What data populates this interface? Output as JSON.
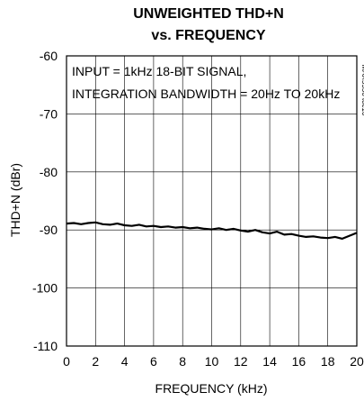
{
  "chart_data": {
    "type": "line",
    "title_lines": [
      "UNWEIGHTED THD+N",
      "vs. FREQUENCY"
    ],
    "xlabel": "FREQUENCY (kHz)",
    "ylabel": "THD+N (dBr)",
    "xlim": [
      0,
      20
    ],
    "ylim": [
      -110,
      -60
    ],
    "xticks": [
      0,
      2,
      4,
      6,
      8,
      10,
      12,
      14,
      16,
      18,
      20
    ],
    "xtick_labels": [
      "0",
      "2",
      "4",
      "6",
      "8",
      "10",
      "12",
      "14",
      "16",
      "18",
      "20"
    ],
    "yticks": [
      -60,
      -70,
      -80,
      -90,
      -100,
      -110
    ],
    "ytick_labels": [
      "-60",
      "-70",
      "-80",
      "-90",
      "-100",
      "-110"
    ],
    "grid": true,
    "annotation_lines": [
      "INPUT = 1kHz 18-BIT SIGNAL,",
      "INTEGRATION BANDWIDTH = 20Hz TO 20kHz"
    ],
    "side_id": "MAX5556 toc10",
    "series": [
      {
        "color": "#000000",
        "x": [
          0.0,
          0.5,
          1.0,
          1.5,
          2.0,
          2.5,
          3.0,
          3.5,
          4.0,
          4.5,
          5.0,
          5.5,
          6.0,
          6.5,
          7.0,
          7.5,
          8.0,
          8.5,
          9.0,
          9.5,
          10.0,
          10.5,
          11.0,
          11.5,
          12.0,
          12.5,
          13.0,
          13.5,
          14.0,
          14.5,
          15.0,
          15.5,
          16.0,
          16.5,
          17.0,
          17.5,
          18.0,
          18.5,
          19.0,
          19.5,
          20.0
        ],
        "y": [
          -88.9,
          -88.8,
          -89.0,
          -88.8,
          -88.7,
          -89.0,
          -89.1,
          -88.9,
          -89.2,
          -89.3,
          -89.1,
          -89.4,
          -89.3,
          -89.5,
          -89.4,
          -89.6,
          -89.5,
          -89.7,
          -89.6,
          -89.8,
          -89.9,
          -89.7,
          -90.0,
          -89.8,
          -90.1,
          -90.3,
          -90.0,
          -90.4,
          -90.6,
          -90.3,
          -90.8,
          -90.7,
          -91.0,
          -91.2,
          -91.1,
          -91.3,
          -91.4,
          -91.2,
          -91.5,
          -91.0,
          -90.5
        ]
      }
    ]
  }
}
